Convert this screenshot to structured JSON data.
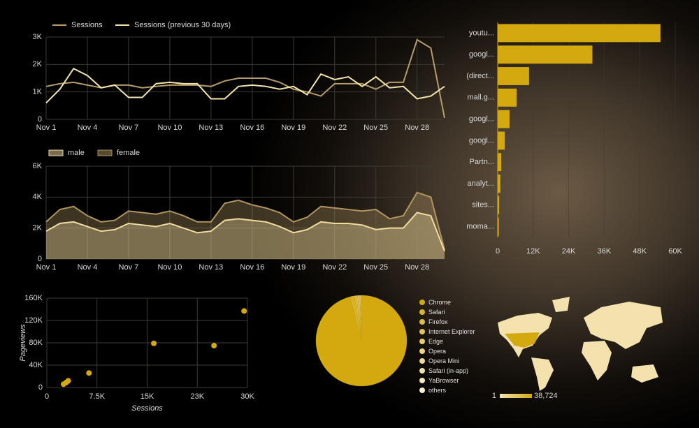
{
  "chart_data": [
    {
      "type": "line",
      "categories": [
        "Nov 1",
        null,
        null,
        "Nov 4",
        null,
        null,
        "Nov 7",
        null,
        null,
        "Nov 10",
        null,
        null,
        "Nov 13",
        null,
        null,
        "Nov 16",
        null,
        null,
        "Nov 19",
        null,
        null,
        "Nov 22",
        null,
        null,
        "Nov 25",
        null,
        null,
        "Nov 28",
        null,
        null
      ],
      "series": [
        {
          "name": "Sessions",
          "color": "#b59c68",
          "values": [
            1200,
            1300,
            1350,
            1250,
            1150,
            1250,
            1250,
            1150,
            1200,
            1250,
            1250,
            1250,
            1200,
            1400,
            1500,
            1500,
            1500,
            1350,
            1100,
            1000,
            850,
            1300,
            1300,
            1300,
            1100,
            1350,
            1350,
            2900,
            2600,
            50
          ]
        },
        {
          "name": "Sessions (previous 30 days)",
          "color": "#f3e4ad",
          "values": [
            600,
            1100,
            1850,
            1600,
            1150,
            1250,
            800,
            800,
            1300,
            1350,
            1300,
            1300,
            750,
            750,
            1200,
            1250,
            1200,
            1100,
            1200,
            900,
            1650,
            1450,
            1550,
            1200,
            1550,
            1150,
            1200,
            750,
            850,
            1200
          ]
        }
      ],
      "ylim": [
        0,
        3000
      ],
      "yticks": [
        0,
        {
          "value": 1000,
          "label": "1K"
        },
        {
          "value": 2000,
          "label": "2K"
        },
        {
          "value": 3000,
          "label": "3K"
        }
      ],
      "grid": true
    },
    {
      "type": "area",
      "categories": [
        "Nov 1",
        null,
        null,
        "Nov 4",
        null,
        null,
        "Nov 7",
        null,
        null,
        "Nov 10",
        null,
        null,
        "Nov 13",
        null,
        null,
        "Nov 16",
        null,
        null,
        "Nov 19",
        null,
        null,
        "Nov 22",
        null,
        null,
        "Nov 25",
        null,
        null,
        "Nov 28",
        null,
        null
      ],
      "series": [
        {
          "name": "male",
          "color": "#f0dca0",
          "values": [
            1800,
            2300,
            2400,
            2100,
            1800,
            1900,
            2300,
            2200,
            2100,
            2300,
            2000,
            1700,
            1800,
            2500,
            2600,
            2500,
            2400,
            2100,
            1700,
            1900,
            2400,
            2300,
            2300,
            2200,
            1900,
            2000,
            2000,
            3000,
            2800,
            500
          ]
        },
        {
          "name": "female",
          "color": "#b09560",
          "values": [
            2400,
            3200,
            3400,
            2800,
            2400,
            2500,
            3100,
            3000,
            2900,
            3100,
            2800,
            2400,
            2400,
            3600,
            3800,
            3500,
            3300,
            3000,
            2400,
            2700,
            3400,
            3300,
            3200,
            3100,
            3200,
            2600,
            2800,
            4300,
            4000,
            600
          ]
        }
      ],
      "ylim": [
        0,
        6000
      ],
      "yticks": [
        0,
        {
          "value": 2000,
          "label": "2K"
        },
        {
          "value": 4000,
          "label": "4K"
        },
        {
          "value": 6000,
          "label": "6K"
        }
      ],
      "grid": true
    },
    {
      "type": "bar",
      "orientation": "horizontal",
      "color": "#d4a90f",
      "categories": [
        "youtu...",
        "googl...",
        "(direct...",
        "mall.g...",
        "googl...",
        "googl...",
        "Partn...",
        "analyt...",
        "sites...",
        "moma..."
      ],
      "values": [
        55000,
        32000,
        10600,
        6400,
        4000,
        2400,
        1200,
        900,
        500,
        400
      ],
      "xlim": [
        0,
        60000
      ],
      "xticks": [
        0,
        {
          "value": 12000,
          "label": "12K"
        },
        {
          "value": 24000,
          "label": "24K"
        },
        {
          "value": 36000,
          "label": "36K"
        },
        {
          "value": 48000,
          "label": "48K"
        },
        {
          "value": 60000,
          "label": "60K"
        }
      ],
      "grid": true
    },
    {
      "type": "scatter",
      "color": "#d4a90f",
      "xlabel": "Sessions",
      "ylabel": "Pageviews",
      "x": [
        2500,
        2900,
        3200,
        6300,
        16000,
        25000,
        29500
      ],
      "values": [
        6000,
        9000,
        12000,
        26000,
        79000,
        75000,
        137000
      ],
      "xlim": [
        0,
        30000
      ],
      "xticks": [
        0,
        {
          "value": 7500,
          "label": "7.5K"
        },
        {
          "value": 15000,
          "label": "15K"
        },
        {
          "value": 22500,
          "label": "23K"
        },
        {
          "value": 30000,
          "label": "30K"
        }
      ],
      "ylim": [
        0,
        160000
      ],
      "yticks": [
        0,
        {
          "value": 40000,
          "label": "40K"
        },
        {
          "value": 80000,
          "label": "80K"
        },
        {
          "value": 120000,
          "label": "120K"
        },
        {
          "value": 160000,
          "label": "160K"
        }
      ],
      "grid": true
    },
    {
      "type": "pie",
      "categories": [
        "Chrome",
        "Safari",
        "Firefox",
        "Internet Explorer",
        "Edge",
        "Opera",
        "Opera Mini",
        "Safari (in-app)",
        "YaBrowser",
        "others"
      ],
      "values": [
        96,
        1.5,
        0.8,
        0.4,
        0.4,
        0.3,
        0.2,
        0.2,
        0.1,
        0.1
      ],
      "colors": [
        "#d4a90f",
        "#dab42c",
        "#dfbc44",
        "#e3c35a",
        "#e6ca70",
        "#e9d185",
        "#ecd89a",
        "#f0dfae",
        "#f3e6c2",
        "#f6edd5"
      ]
    },
    {
      "type": "map",
      "color_scale": [
        {
          "value": 1,
          "label": "1"
        },
        {
          "value": 38724,
          "label": "38,724"
        }
      ],
      "colors": [
        "#f3e2ae",
        "#d4a90f"
      ]
    }
  ]
}
